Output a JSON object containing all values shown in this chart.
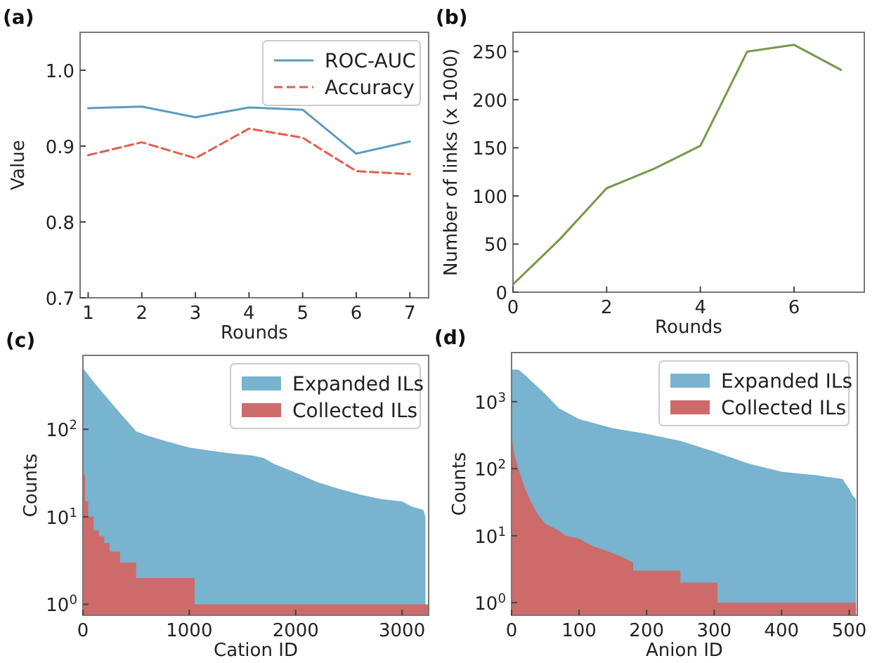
{
  "chart_data": [
    {
      "type": "line",
      "title": "(a)",
      "xlabel": "Rounds",
      "ylabel": "Value",
      "x": [
        1,
        2,
        3,
        4,
        5,
        6,
        7
      ],
      "xlim": [
        0.85,
        7.35
      ],
      "xticks": [
        1,
        2,
        3,
        4,
        5,
        6,
        7
      ],
      "ylim": [
        0.7,
        1.05
      ],
      "yticks": [
        {
          "value": 0.7,
          "label": "0.7"
        },
        {
          "value": 0.8,
          "label": "0.8"
        },
        {
          "value": 0.9,
          "label": "0.9"
        },
        {
          "value": 1.0,
          "label": "1.0"
        }
      ],
      "legend": "top right",
      "series": [
        {
          "name": "ROC-AUC",
          "color": "#5b9bc0",
          "line_style": "solid",
          "values": [
            0.95,
            0.952,
            0.938,
            0.951,
            0.948,
            0.89,
            0.906
          ]
        },
        {
          "name": "Accuracy",
          "color": "#e0604f",
          "line_style": "dashed",
          "values": [
            0.888,
            0.905,
            0.884,
            0.923,
            0.911,
            0.867,
            0.863
          ]
        }
      ]
    },
    {
      "type": "line",
      "title": "(b)",
      "xlabel": "Rounds",
      "ylabel": "Number of links (x 1000)",
      "x": [
        0,
        1,
        2,
        3,
        4,
        5,
        6,
        7
      ],
      "xlim": [
        0,
        7.5
      ],
      "xticks": [
        0,
        2,
        4,
        6
      ],
      "ylim": [
        0,
        270
      ],
      "yticks": [
        0,
        50,
        100,
        150,
        200,
        250
      ],
      "series": [
        {
          "color": "#77994b",
          "values": [
            8,
            55,
            108,
            128,
            152,
            250,
            257,
            231
          ]
        }
      ]
    },
    {
      "type": "area",
      "title": "(c)",
      "xlabel": "Cation ID",
      "ylabel": "Counts",
      "log": "y",
      "xlim": [
        0,
        3250
      ],
      "xticks": [
        0,
        1000,
        2000,
        3000
      ],
      "ylim": [
        0.75,
        700
      ],
      "yticks": [
        {
          "value": 1,
          "label": "10$^{0}$"
        },
        {
          "value": 10,
          "label": "10$^{1}$"
        },
        {
          "value": 100,
          "label": "10$^{2}$"
        }
      ],
      "legend": "top right",
      "series": [
        {
          "name": "Expanded ILs",
          "color": "#78b3cf",
          "x": [
            0,
            50,
            100,
            200,
            300,
            400,
            500,
            600,
            800,
            1000,
            1200,
            1400,
            1600,
            1700,
            1800,
            2000,
            2200,
            2400,
            2600,
            2800,
            3000,
            3100,
            3200,
            3220
          ],
          "values": [
            500,
            420,
            350,
            250,
            180,
            130,
            95,
            85,
            72,
            62,
            57,
            53,
            50,
            47,
            40,
            32,
            25,
            21,
            18,
            16,
            15,
            13,
            12,
            10
          ]
        },
        {
          "name": "Collected ILs",
          "color": "#cd6b6b",
          "x": [
            0,
            20,
            20,
            50,
            50,
            100,
            100,
            150,
            150,
            200,
            200,
            250,
            250,
            350,
            350,
            500,
            500,
            1050,
            1050,
            3250
          ],
          "values": [
            30,
            30,
            15,
            15,
            10,
            10,
            7,
            7,
            6,
            6,
            5,
            5,
            4,
            4,
            3,
            3,
            2,
            2,
            1,
            1
          ]
        }
      ]
    },
    {
      "type": "area",
      "title": "(d)",
      "xlabel": "Anion ID",
      "ylabel": "Counts",
      "log": "y",
      "xlim": [
        0,
        512
      ],
      "xticks": [
        0,
        100,
        200,
        300,
        400,
        500
      ],
      "ylim": [
        0.65,
        5400
      ],
      "yticks": [
        {
          "value": 1,
          "label": "10$^{0}$"
        },
        {
          "value": 10,
          "label": "10$^{1}$"
        },
        {
          "value": 100,
          "label": "10$^{2}$"
        },
        {
          "value": 1000,
          "label": "10$^{3}$"
        }
      ],
      "legend": "top right",
      "series": [
        {
          "name": "Expanded ILs",
          "color": "#78b3cf",
          "x": [
            0,
            10,
            20,
            30,
            50,
            70,
            100,
            150,
            200,
            250,
            300,
            350,
            400,
            450,
            490,
            500,
            505,
            510
          ],
          "values": [
            3000,
            3000,
            2500,
            2000,
            1300,
            800,
            550,
            400,
            330,
            260,
            180,
            120,
            90,
            80,
            70,
            50,
            40,
            35
          ]
        },
        {
          "name": "Collected ILs",
          "color": "#cd6b6b",
          "x": [
            0,
            5,
            10,
            20,
            30,
            40,
            50,
            70,
            80,
            100,
            120,
            140,
            160,
            180,
            180,
            250,
            250,
            305,
            305,
            510
          ],
          "values": [
            300,
            150,
            100,
            50,
            30,
            20,
            15,
            12,
            10,
            9,
            7,
            6,
            5,
            4,
            3,
            3,
            2,
            2,
            1,
            1
          ]
        }
      ]
    }
  ]
}
